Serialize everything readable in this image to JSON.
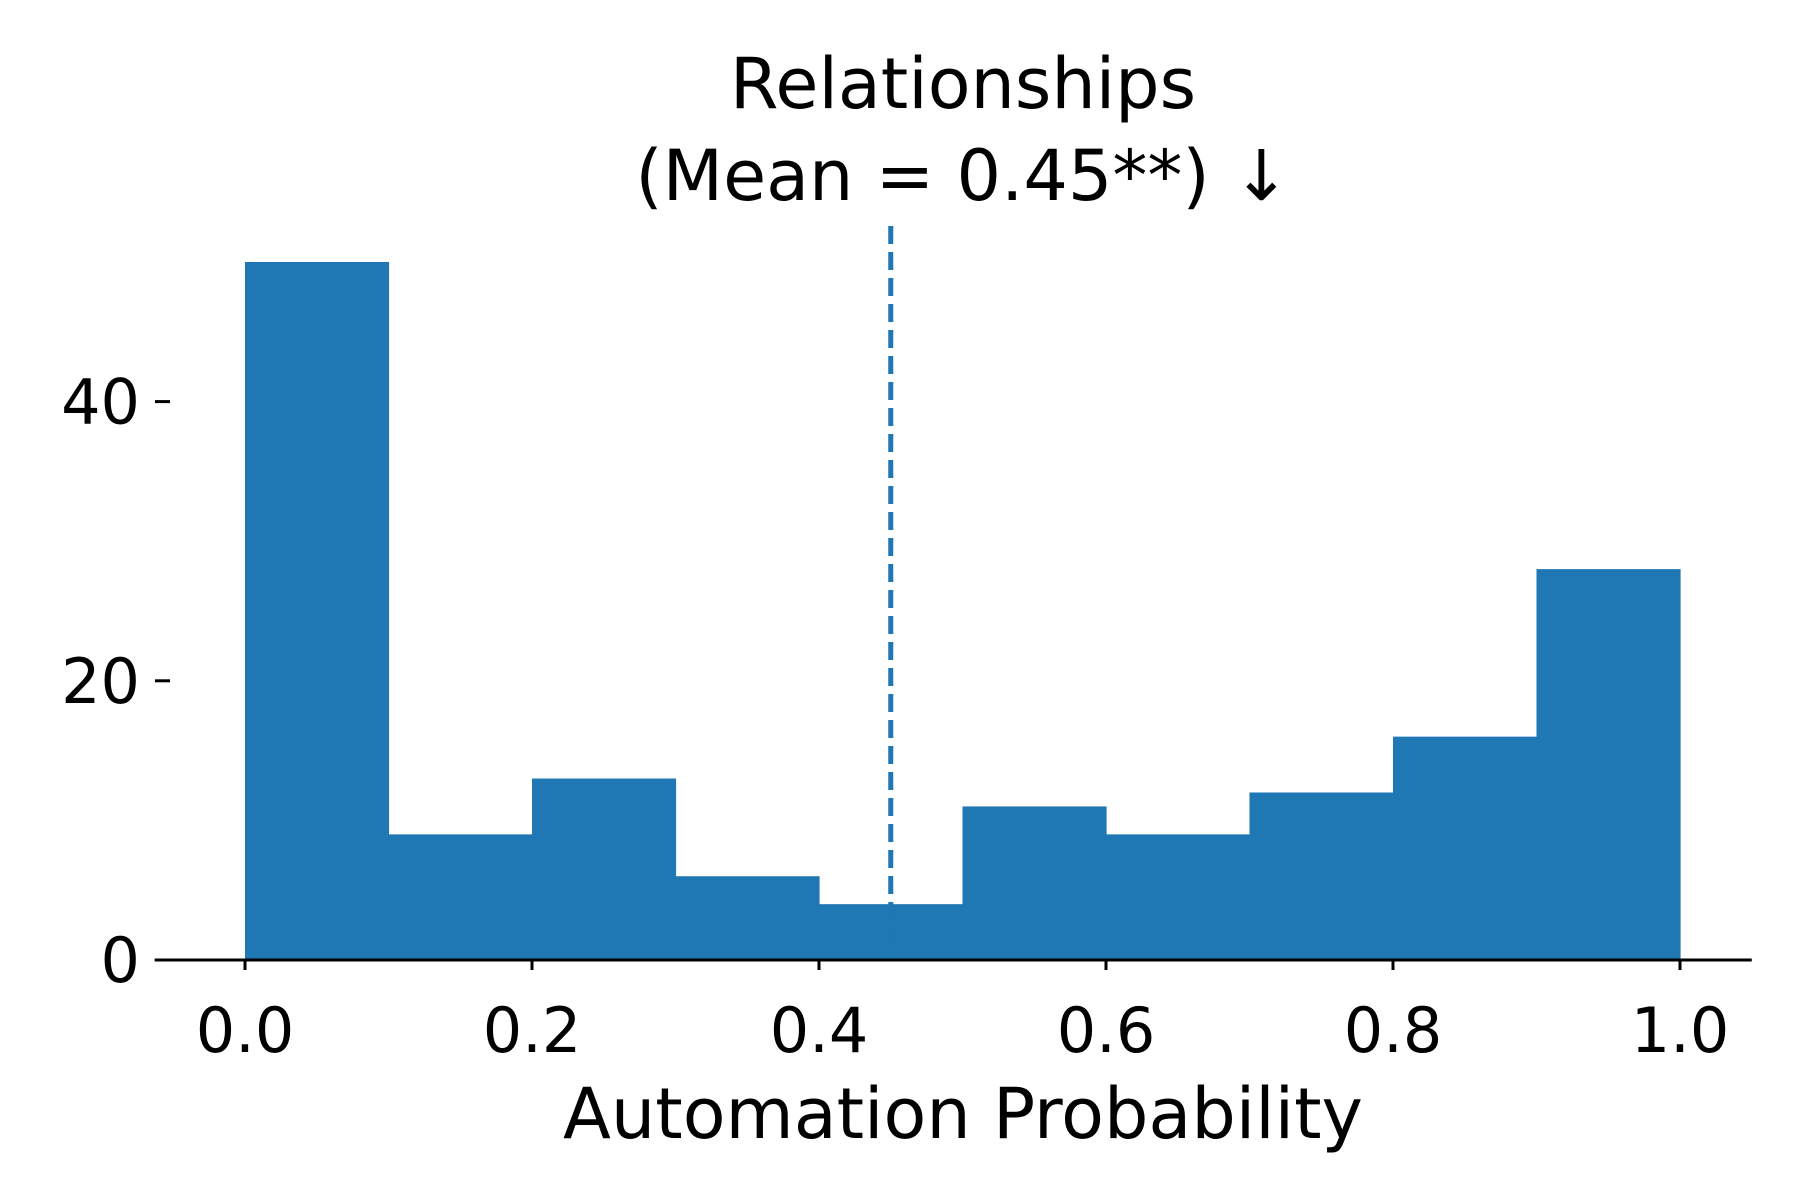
{
  "chart_data": {
    "type": "bar",
    "title": "Relationships",
    "subtitle": "(Mean = 0.45**) ↓",
    "xlabel": "Automation Probability",
    "ylabel": "",
    "bins": [
      {
        "x0": 0.0,
        "x1": 0.1,
        "value": 50
      },
      {
        "x0": 0.1,
        "x1": 0.2,
        "value": 9
      },
      {
        "x0": 0.2,
        "x1": 0.3,
        "value": 13
      },
      {
        "x0": 0.3,
        "x1": 0.4,
        "value": 6
      },
      {
        "x0": 0.4,
        "x1": 0.5,
        "value": 4
      },
      {
        "x0": 0.5,
        "x1": 0.6,
        "value": 11
      },
      {
        "x0": 0.6,
        "x1": 0.7,
        "value": 9
      },
      {
        "x0": 0.7,
        "x1": 0.8,
        "value": 12
      },
      {
        "x0": 0.8,
        "x1": 0.9,
        "value": 16
      },
      {
        "x0": 0.9,
        "x1": 1.0,
        "value": 28
      }
    ],
    "mean_line": 0.45,
    "xticks": [
      "0.0",
      "0.2",
      "0.4",
      "0.6",
      "0.8",
      "1.0"
    ],
    "yticks": [
      "0",
      "20",
      "40"
    ],
    "xlim": [
      -0.063,
      1.05
    ],
    "ylim": [
      0,
      50
    ],
    "grid": false,
    "colors": {
      "bars": "#1f77b4",
      "mean_line": "#1f77b4",
      "axis": "#000000"
    }
  }
}
